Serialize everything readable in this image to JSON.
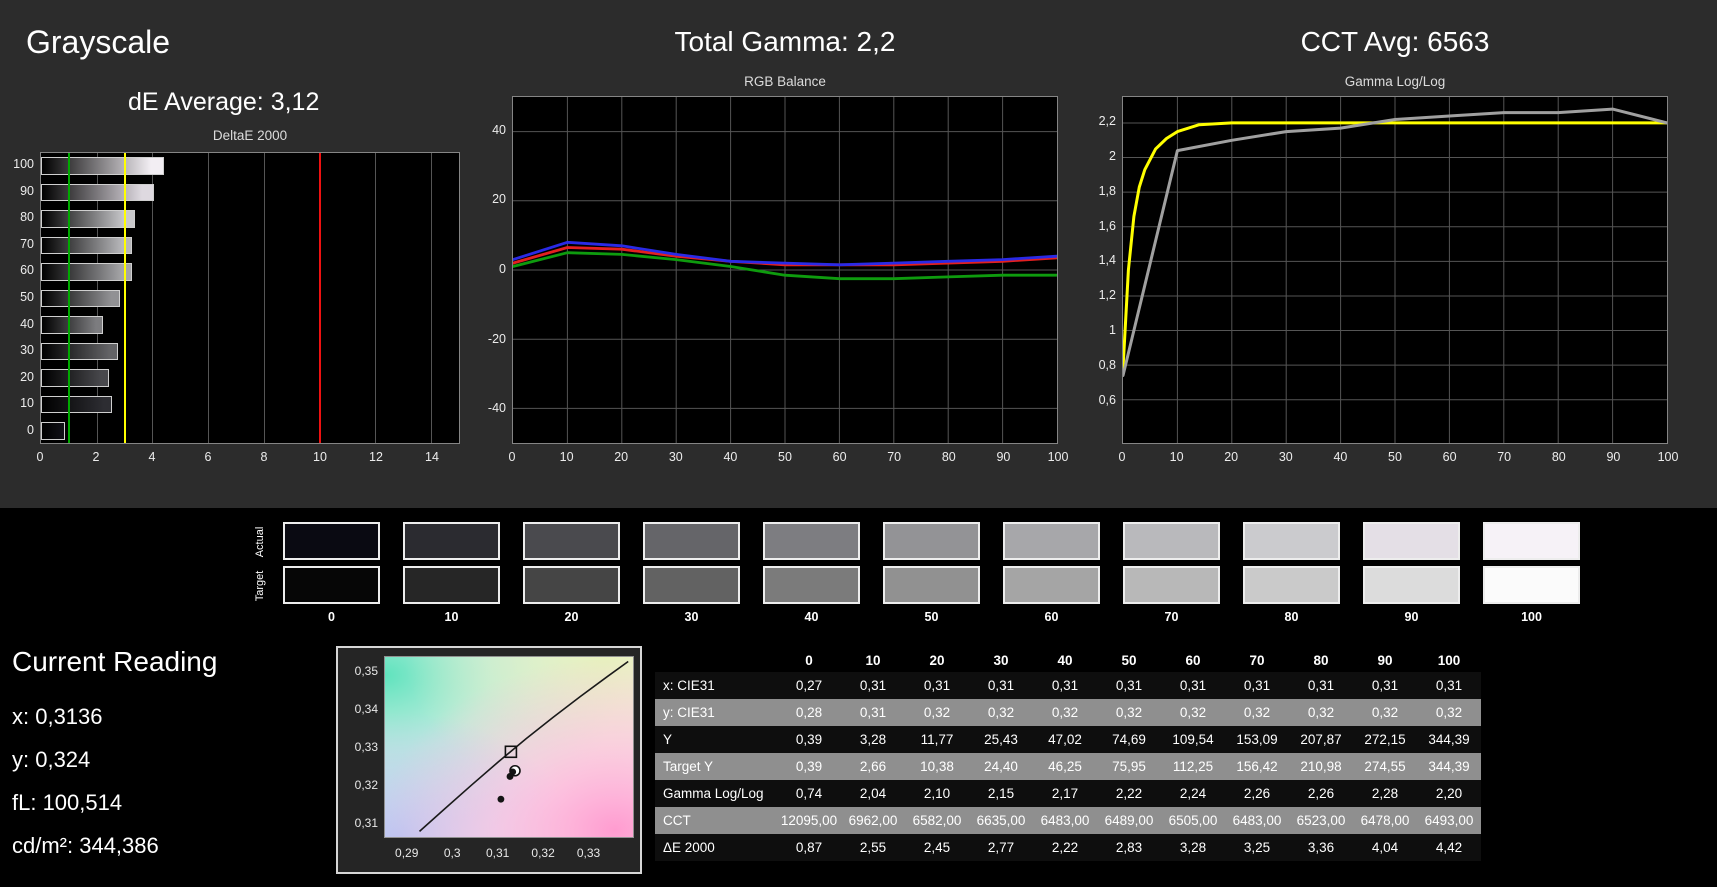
{
  "grayscale": {
    "title": "Grayscale",
    "de_average": "dE Average: 3,12"
  },
  "rgb_panel": {
    "title": "Total Gamma: 2,2",
    "chart_title": "RGB Balance"
  },
  "gamma_panel": {
    "title": "CCT Avg: 6563",
    "chart_title": "Gamma Log/Log"
  },
  "deltae_panel": {
    "chart_title": "DeltaE 2000"
  },
  "swatches": {
    "row_labels": [
      "Actual",
      "Target"
    ],
    "items": [
      {
        "label": "0",
        "actual": "#0a0a12",
        "target": "#060606"
      },
      {
        "label": "10",
        "actual": "#2b2b30",
        "target": "#262626"
      },
      {
        "label": "20",
        "actual": "#4a4a4e",
        "target": "#454545"
      },
      {
        "label": "30",
        "actual": "#656569",
        "target": "#626262"
      },
      {
        "label": "40",
        "actual": "#7d7d81",
        "target": "#7b7b7b"
      },
      {
        "label": "50",
        "actual": "#939396",
        "target": "#919191"
      },
      {
        "label": "60",
        "actual": "#a7a7aa",
        "target": "#a5a5a5"
      },
      {
        "label": "70",
        "actual": "#b9b9bc",
        "target": "#b8b8b8"
      },
      {
        "label": "80",
        "actual": "#cbcbce",
        "target": "#cacaca"
      },
      {
        "label": "90",
        "actual": "#e4dfe6",
        "target": "#dcdcdc"
      },
      {
        "label": "100",
        "actual": "#f6f2f7",
        "target": "#fbfbfb"
      }
    ]
  },
  "current_reading": {
    "title": "Current Reading",
    "lines": [
      "x: 0,3136",
      "y: 0,324",
      "fL: 100,514",
      "cd/m²: 344,386"
    ]
  },
  "table": {
    "columns": [
      "0",
      "10",
      "20",
      "30",
      "40",
      "50",
      "60",
      "70",
      "80",
      "90",
      "100"
    ],
    "rows": [
      {
        "label": "x: CIE31",
        "shade": "dark",
        "values": [
          "0,27",
          "0,31",
          "0,31",
          "0,31",
          "0,31",
          "0,31",
          "0,31",
          "0,31",
          "0,31",
          "0,31",
          "0,31"
        ]
      },
      {
        "label": "y: CIE31",
        "shade": "light",
        "values": [
          "0,28",
          "0,31",
          "0,32",
          "0,32",
          "0,32",
          "0,32",
          "0,32",
          "0,32",
          "0,32",
          "0,32",
          "0,32"
        ]
      },
      {
        "label": "Y",
        "shade": "dark",
        "values": [
          "0,39",
          "3,28",
          "11,77",
          "25,43",
          "47,02",
          "74,69",
          "109,54",
          "153,09",
          "207,87",
          "272,15",
          "344,39"
        ]
      },
      {
        "label": "Target Y",
        "shade": "light",
        "values": [
          "0,39",
          "2,66",
          "10,38",
          "24,40",
          "46,25",
          "75,95",
          "112,25",
          "156,42",
          "210,98",
          "274,55",
          "344,39"
        ]
      },
      {
        "label": "Gamma Log/Log",
        "shade": "dark",
        "values": [
          "0,74",
          "2,04",
          "2,10",
          "2,15",
          "2,17",
          "2,22",
          "2,24",
          "2,26",
          "2,26",
          "2,28",
          "2,20"
        ]
      },
      {
        "label": "CCT",
        "shade": "light",
        "values": [
          "12095,00",
          "6962,00",
          "6582,00",
          "6635,00",
          "6483,00",
          "6489,00",
          "6505,00",
          "6483,00",
          "6523,00",
          "6478,00",
          "6493,00"
        ]
      },
      {
        "label": "ΔE 2000",
        "shade": "dark",
        "values": [
          "0,87",
          "2,55",
          "2,45",
          "2,77",
          "2,22",
          "2,83",
          "3,28",
          "3,25",
          "3,36",
          "4,04",
          "4,42"
        ]
      }
    ]
  },
  "chart_data": [
    {
      "id": "deltae",
      "type": "bar",
      "orientation": "horizontal",
      "title": "DeltaE 2000",
      "categories": [
        "100",
        "90",
        "80",
        "70",
        "60",
        "50",
        "40",
        "30",
        "20",
        "10",
        "0"
      ],
      "values": [
        4.42,
        4.04,
        3.36,
        3.25,
        3.28,
        2.83,
        2.22,
        2.77,
        2.45,
        2.55,
        0.87
      ],
      "bar_grays": [
        "#f2eef3",
        "#ded9e0",
        "#c9c9cc",
        "#b7b7ba",
        "#a5a5a8",
        "#919194",
        "#7c7c7f",
        "#636366",
        "#48484c",
        "#2d2d32",
        "#0f0f15"
      ],
      "xlim": [
        0,
        15
      ],
      "xticks": [
        0,
        2,
        4,
        6,
        8,
        10,
        12,
        14
      ],
      "ref_lines": [
        {
          "name": "green",
          "x": 1,
          "color": "#00aa00"
        },
        {
          "name": "yellow",
          "x": 3,
          "color": "#ffff00"
        },
        {
          "name": "red",
          "x": 10,
          "color": "#ee1111"
        }
      ]
    },
    {
      "id": "rgb",
      "type": "line",
      "title": "RGB Balance",
      "x": [
        0,
        10,
        20,
        30,
        40,
        50,
        60,
        70,
        80,
        90,
        100
      ],
      "xticks": [
        0,
        10,
        20,
        30,
        40,
        50,
        60,
        70,
        80,
        90,
        100
      ],
      "xlim": [
        0,
        100
      ],
      "ylim": [
        -50,
        50
      ],
      "yticks": [
        40,
        20,
        0,
        -20,
        -40
      ],
      "series": [
        {
          "name": "green",
          "color": "#0e9b0e",
          "width": 2.8,
          "values": [
            1,
            5,
            4.5,
            3,
            1,
            -1.5,
            -2.5,
            -2.5,
            -2,
            -1.5,
            -1.5
          ]
        },
        {
          "name": "red",
          "color": "#e42020",
          "width": 2.8,
          "values": [
            2,
            6.5,
            6,
            4,
            2.5,
            1.5,
            1.5,
            1.5,
            2,
            2.5,
            3.5
          ]
        },
        {
          "name": "blue",
          "color": "#2a2ae6",
          "width": 2.8,
          "values": [
            3,
            8,
            7,
            4.5,
            2.5,
            2,
            1.5,
            2,
            2.5,
            3,
            4
          ]
        }
      ]
    },
    {
      "id": "gamma",
      "type": "line",
      "title": "Gamma Log/Log",
      "xticks": [
        0,
        10,
        20,
        30,
        40,
        50,
        60,
        70,
        80,
        90,
        100
      ],
      "xlim": [
        0,
        100
      ],
      "ylim": [
        0.35,
        2.35
      ],
      "yticks": [
        0.6,
        0.8,
        1,
        1.2,
        1.4,
        1.6,
        1.8,
        2,
        2.2
      ],
      "ytick_labels": [
        "0,6",
        "0,8",
        "1",
        "1,2",
        "1,4",
        "1,6",
        "1,8",
        "2",
        "2,2"
      ],
      "series": [
        {
          "name": "target",
          "color": "#ffff00",
          "width": 3,
          "x": [
            0,
            1,
            2,
            3,
            4,
            6,
            8,
            10,
            14,
            20,
            30,
            100
          ],
          "values": [
            0.78,
            1.35,
            1.66,
            1.83,
            1.93,
            2.05,
            2.11,
            2.15,
            2.19,
            2.2,
            2.2,
            2.2
          ]
        },
        {
          "name": "measured",
          "color": "#a0a0a0",
          "width": 3,
          "x": [
            0,
            10,
            20,
            30,
            40,
            50,
            60,
            70,
            80,
            90,
            100
          ],
          "values": [
            0.74,
            2.04,
            2.1,
            2.15,
            2.17,
            2.22,
            2.24,
            2.26,
            2.26,
            2.28,
            2.2
          ]
        }
      ]
    },
    {
      "id": "cie",
      "type": "scatter",
      "title": "CIE chromaticity detail",
      "xlim": [
        0.285,
        0.34
      ],
      "ylim": [
        0.306,
        0.354
      ],
      "xticks": [
        0.29,
        0.3,
        0.31,
        0.32,
        0.33
      ],
      "xtick_labels": [
        "0,29",
        "0,3",
        "0,31",
        "0,32",
        "0,33"
      ],
      "yticks": [
        0.35,
        0.34,
        0.33,
        0.32,
        0.31
      ],
      "ytick_labels": [
        "0,35",
        "0,34",
        "0,33",
        "0,32",
        "0,31"
      ],
      "locus": [
        [
          0.2926,
          0.308
        ],
        [
          0.298,
          0.3138
        ],
        [
          0.304,
          0.3202
        ],
        [
          0.31,
          0.3264
        ],
        [
          0.316,
          0.3324
        ],
        [
          0.322,
          0.3381
        ],
        [
          0.328,
          0.3436
        ],
        [
          0.334,
          0.3489
        ],
        [
          0.3385,
          0.3528
        ]
      ],
      "points": [
        {
          "x": 0.3127,
          "y": 0.329,
          "marker": "square-open",
          "label": "target white point"
        },
        {
          "x": 0.3136,
          "y": 0.324,
          "marker": "circle-open",
          "label": "current reading"
        },
        {
          "x": 0.3131,
          "y": 0.3237,
          "marker": "dot"
        },
        {
          "x": 0.3125,
          "y": 0.3225,
          "marker": "dot"
        },
        {
          "x": 0.3105,
          "y": 0.3165,
          "marker": "dot"
        }
      ]
    }
  ]
}
